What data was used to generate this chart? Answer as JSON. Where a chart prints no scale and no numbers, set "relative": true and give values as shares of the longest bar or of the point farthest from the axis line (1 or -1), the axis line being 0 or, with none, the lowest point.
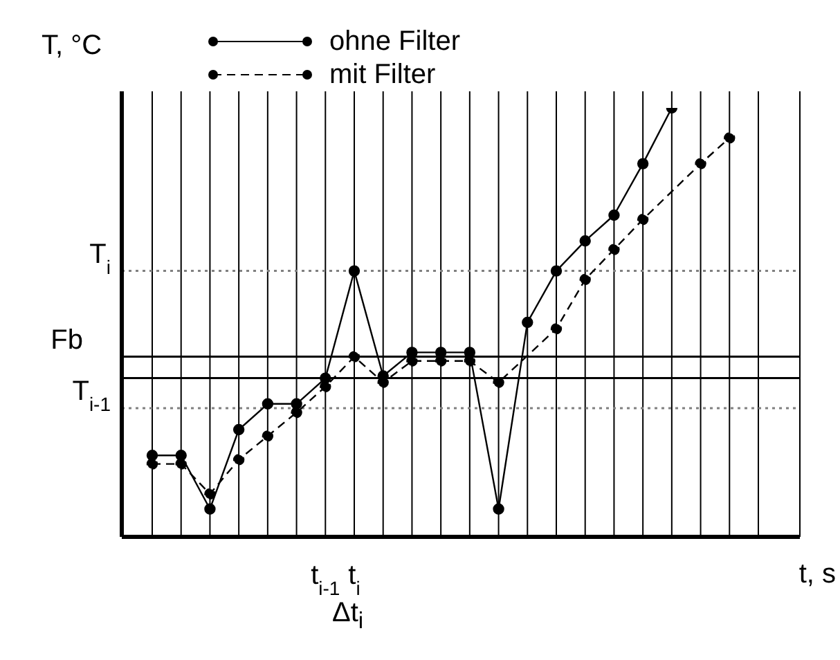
{
  "chart_data": {
    "type": "line",
    "relative": true,
    "ylabel": "T, °C",
    "xlabel": "t, s",
    "categories": [
      null,
      null,
      null,
      null,
      null,
      null,
      "t$_{i-1}$",
      "t$_{i}$",
      null,
      null,
      null,
      null,
      null,
      null,
      null,
      null,
      null,
      null,
      null,
      null,
      null,
      null
    ],
    "series": [
      {
        "name": "ohne Filter",
        "color": "#000000",
        "line_style": "solid",
        "values": [
          0.19,
          0.19,
          0.065,
          0.25,
          0.31,
          0.31,
          0.37,
          0.62,
          0.375,
          0.43,
          0.43,
          0.43,
          0.065,
          0.5,
          0.62,
          0.69,
          0.75,
          0.87,
          1,
          null,
          null,
          null
        ]
      },
      {
        "name": "mit Filter",
        "color": "#000000",
        "line_style": "dashed",
        "values": [
          0.17,
          0.17,
          0.1,
          0.18,
          0.235,
          0.29,
          0.35,
          0.42,
          0.36,
          0.41,
          0.41,
          0.41,
          0.36,
          null,
          0.485,
          0.6,
          0.67,
          0.74,
          null,
          0.87,
          0.93,
          null
        ]
      }
    ],
    "ref_lines": [
      {
        "axis": "y",
        "value": 0.62,
        "label": "T$_{i}$",
        "line_style": "dotted",
        "color": "#808080"
      },
      {
        "axis": "y",
        "value": 0.3,
        "label": "T$_{i-1}$",
        "line_style": "dotted",
        "color": "#808080"
      },
      {
        "axis": "y",
        "value": 0.42,
        "label": "Fb",
        "line_style": "solid",
        "color": "#000000"
      },
      {
        "axis": "y",
        "value": 0.37,
        "label": null,
        "line_style": "solid",
        "color": "#000000"
      }
    ],
    "annotations": [
      "Δt$_{i}$"
    ],
    "marker": "circle",
    "grid": "x",
    "legend": "top"
  }
}
